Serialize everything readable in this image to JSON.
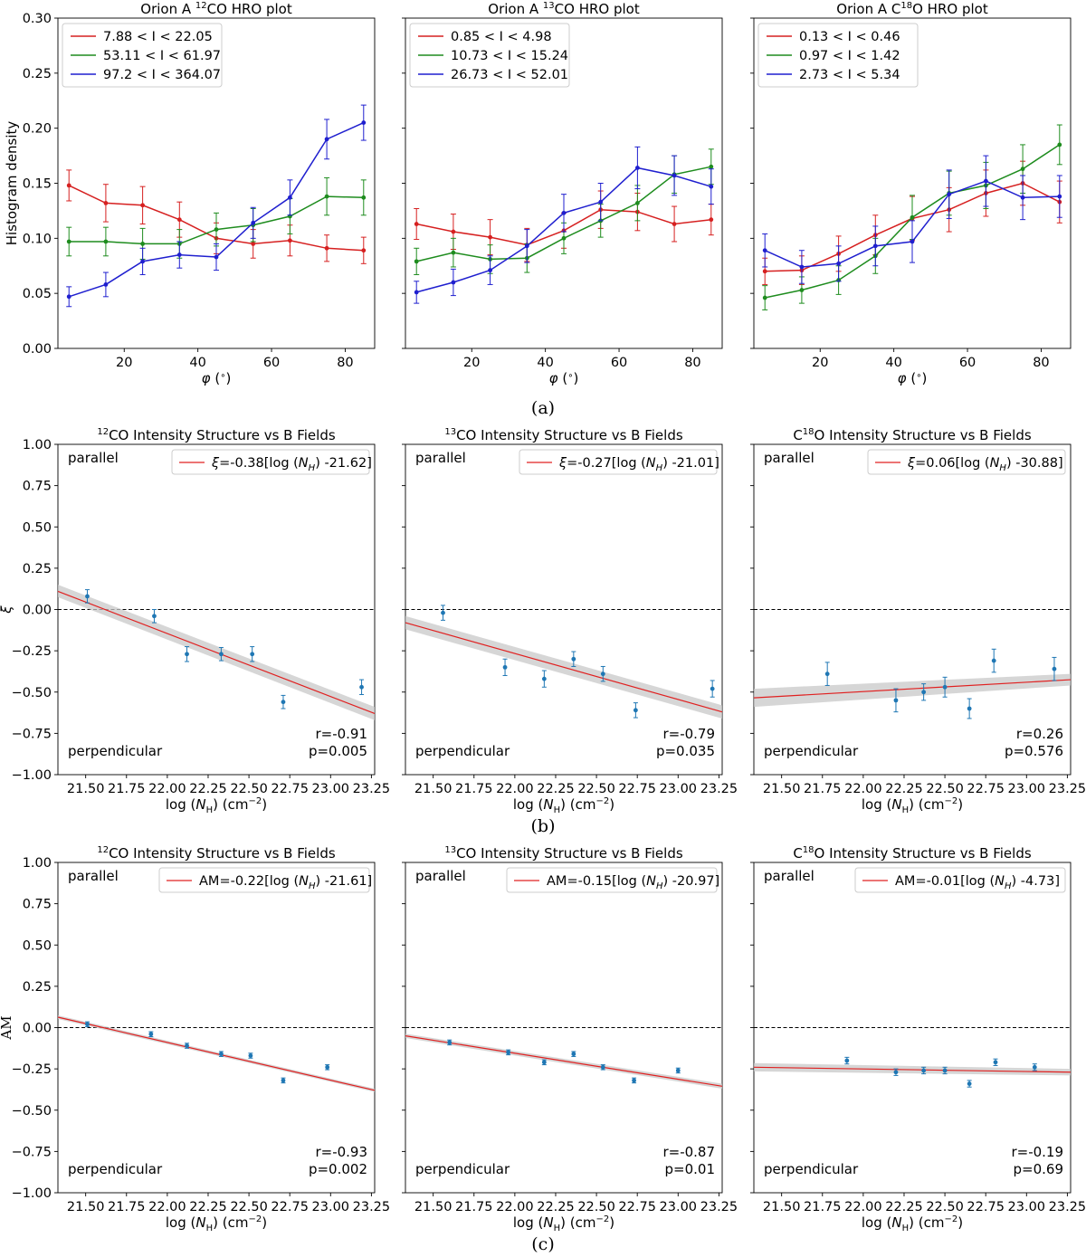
{
  "colors": {
    "red": "#d62020",
    "green": "#1e8c1e",
    "blue": "#1f1fcf",
    "teal": "#1f77b4",
    "fit": "#e02020",
    "band": "#c8c8c8"
  },
  "captions": [
    "(a)",
    "(b)",
    "(c)"
  ],
  "chart_data": [
    {
      "type": "line",
      "id": "a1",
      "row": 0,
      "col": 0,
      "title_prefix": "Orion A ",
      "title_sup": "12",
      "title_suffix": "CO HRO plot",
      "xlabel": "φ (°)",
      "ylabel": "Histogram density",
      "xlim": [
        2,
        88
      ],
      "ylim": [
        0,
        0.3
      ],
      "xticks": [
        20,
        40,
        60,
        80
      ],
      "yticks": [
        0.0,
        0.05,
        0.1,
        0.15,
        0.2,
        0.25,
        0.3
      ],
      "ytick_labels": [
        "0.00",
        "0.05",
        "0.10",
        "0.15",
        "0.20",
        "0.25",
        "0.30"
      ],
      "x": [
        5,
        15,
        25,
        35,
        45,
        55,
        65,
        75,
        85
      ],
      "series": [
        {
          "name": "7.88 < I < 22.05",
          "color": "red",
          "values": [
            0.148,
            0.132,
            0.13,
            0.117,
            0.1,
            0.095,
            0.098,
            0.091,
            0.089
          ],
          "err": [
            0.014,
            0.017,
            0.017,
            0.016,
            0.014,
            0.013,
            0.014,
            0.012,
            0.012
          ]
        },
        {
          "name": "53.11 < I < 61.97",
          "color": "green",
          "values": [
            0.097,
            0.097,
            0.095,
            0.095,
            0.108,
            0.112,
            0.12,
            0.138,
            0.137
          ],
          "err": [
            0.013,
            0.013,
            0.014,
            0.013,
            0.015,
            0.015,
            0.016,
            0.017,
            0.016
          ]
        },
        {
          "name": "97.2 < I < 364.07",
          "color": "blue",
          "values": [
            0.047,
            0.058,
            0.079,
            0.085,
            0.083,
            0.114,
            0.137,
            0.19,
            0.205
          ],
          "err": [
            0.009,
            0.011,
            0.012,
            0.012,
            0.012,
            0.014,
            0.016,
            0.018,
            0.016
          ]
        }
      ]
    },
    {
      "type": "line",
      "id": "a2",
      "row": 0,
      "col": 1,
      "title_prefix": "Orion A ",
      "title_sup": "13",
      "title_suffix": "CO HRO plot",
      "xlabel": "φ (°)",
      "ylabel": "",
      "xlim": [
        2,
        88
      ],
      "ylim": [
        0,
        0.3
      ],
      "xticks": [
        20,
        40,
        60,
        80
      ],
      "yticks": [
        0.0,
        0.05,
        0.1,
        0.15,
        0.2,
        0.25,
        0.3
      ],
      "x": [
        5,
        15,
        25,
        35,
        45,
        55,
        65,
        75,
        85
      ],
      "series": [
        {
          "name": "0.85 < I < 4.98",
          "color": "red",
          "values": [
            0.113,
            0.106,
            0.101,
            0.094,
            0.107,
            0.126,
            0.124,
            0.113,
            0.117
          ],
          "err": [
            0.014,
            0.016,
            0.016,
            0.015,
            0.016,
            0.017,
            0.017,
            0.016,
            0.014
          ]
        },
        {
          "name": "10.73 < I < 15.24",
          "color": "green",
          "values": [
            0.079,
            0.087,
            0.081,
            0.082,
            0.1,
            0.116,
            0.132,
            0.158,
            0.165
          ],
          "err": [
            0.012,
            0.013,
            0.013,
            0.013,
            0.014,
            0.015,
            0.016,
            0.017,
            0.016
          ]
        },
        {
          "name": "26.73 < I < 52.01",
          "color": "blue",
          "values": [
            0.051,
            0.06,
            0.071,
            0.093,
            0.123,
            0.133,
            0.164,
            0.157,
            0.147
          ],
          "err": [
            0.01,
            0.012,
            0.013,
            0.015,
            0.017,
            0.017,
            0.019,
            0.018,
            0.016
          ]
        }
      ]
    },
    {
      "type": "line",
      "id": "a3",
      "row": 0,
      "col": 2,
      "title_prefix": "Orion A C",
      "title_sup": "18",
      "title_suffix": "O HRO plot",
      "xlabel": "φ (°)",
      "ylabel": "",
      "xlim": [
        2,
        88
      ],
      "ylim": [
        0,
        0.3
      ],
      "xticks": [
        20,
        40,
        60,
        80
      ],
      "yticks": [
        0.0,
        0.05,
        0.1,
        0.15,
        0.2,
        0.25,
        0.3
      ],
      "x": [
        5,
        15,
        25,
        35,
        45,
        55,
        65,
        75,
        85
      ],
      "series": [
        {
          "name": "0.13 < I < 0.46",
          "color": "red",
          "values": [
            0.07,
            0.071,
            0.086,
            0.103,
            0.118,
            0.126,
            0.141,
            0.15,
            0.133
          ],
          "err": [
            0.012,
            0.013,
            0.016,
            0.018,
            0.02,
            0.02,
            0.021,
            0.02,
            0.019
          ]
        },
        {
          "name": "0.97 < I < 1.42",
          "color": "green",
          "values": [
            0.046,
            0.053,
            0.062,
            0.084,
            0.119,
            0.141,
            0.148,
            0.163,
            0.185
          ],
          "err": [
            0.011,
            0.012,
            0.013,
            0.016,
            0.02,
            0.02,
            0.021,
            0.022,
            0.018
          ]
        },
        {
          "name": "2.73 < I < 5.34",
          "color": "blue",
          "values": [
            0.089,
            0.074,
            0.077,
            0.093,
            0.097,
            0.14,
            0.152,
            0.137,
            0.138
          ],
          "err": [
            0.015,
            0.015,
            0.016,
            0.018,
            0.019,
            0.022,
            0.023,
            0.02,
            0.019
          ]
        }
      ]
    },
    {
      "type": "scatter",
      "id": "b1",
      "row": 1,
      "col": 0,
      "title_prefix": "",
      "title_sup": "12",
      "title_suffix": "CO Intensity Structure vs B Fields",
      "xlabel": "log (N_H) (cm⁻²)",
      "ylabel": "ξ",
      "xlim": [
        21.33,
        23.27
      ],
      "ylim": [
        -1,
        1
      ],
      "xticks": [
        21.5,
        21.75,
        22.0,
        22.25,
        22.5,
        22.75,
        23.0,
        23.25
      ],
      "xtick_labels": [
        "21.50",
        "21.75",
        "22.00",
        "22.25",
        "22.50",
        "22.75",
        "23.00",
        "23.25"
      ],
      "yticks": [
        -1,
        -0.75,
        -0.5,
        -0.25,
        0,
        0.25,
        0.5,
        0.75,
        1
      ],
      "ytick_labels": [
        "−1.00",
        "−0.75",
        "−0.50",
        "−0.25",
        "0.00",
        "0.25",
        "0.50",
        "0.75",
        "1.00"
      ],
      "legend": {
        "var": "ξ",
        "rest": "=-0.38[log (",
        "sub": "H",
        "tail": ") -21.62]"
      },
      "annotations": {
        "top": "parallel",
        "bottom": "perpendicular",
        "r": "r=-0.91",
        "p": "p=0.005"
      },
      "points": {
        "x": [
          21.51,
          21.92,
          22.12,
          22.33,
          22.52,
          22.71,
          23.19
        ],
        "y": [
          0.08,
          -0.04,
          -0.27,
          -0.27,
          -0.27,
          -0.56,
          -0.47
        ],
        "err": [
          0.04,
          0.04,
          0.045,
          0.04,
          0.045,
          0.04,
          0.045
        ]
      },
      "fit": {
        "x": [
          21.33,
          23.27
        ],
        "y": [
          0.11,
          -0.63
        ],
        "band_lo": [
          0.075,
          -0.67
        ],
        "band_hi": [
          0.15,
          -0.59
        ]
      }
    },
    {
      "type": "scatter",
      "id": "b2",
      "row": 1,
      "col": 1,
      "title_prefix": "",
      "title_sup": "13",
      "title_suffix": "CO Intensity Structure vs B Fields",
      "xlabel": "log (N_H) (cm⁻²)",
      "ylabel": "",
      "xlim": [
        21.33,
        23.27
      ],
      "ylim": [
        -1,
        1
      ],
      "xticks": [
        21.5,
        21.75,
        22.0,
        22.25,
        22.5,
        22.75,
        23.0,
        23.25
      ],
      "xtick_labels": [
        "21.50",
        "21.75",
        "22.00",
        "22.25",
        "22.50",
        "22.75",
        "23.00",
        "23.25"
      ],
      "yticks": [
        -1,
        -0.75,
        -0.5,
        -0.25,
        0,
        0.25,
        0.5,
        0.75,
        1
      ],
      "legend": {
        "var": "ξ",
        "rest": "=-0.27[log (",
        "sub": "H",
        "tail": ") -21.01]"
      },
      "annotations": {
        "top": "parallel",
        "bottom": "perpendicular",
        "r": "r=-0.79",
        "p": "p=0.035"
      },
      "points": {
        "x": [
          21.56,
          21.94,
          22.18,
          22.36,
          22.54,
          22.74,
          23.21
        ],
        "y": [
          -0.02,
          -0.35,
          -0.42,
          -0.3,
          -0.39,
          -0.61,
          -0.48
        ],
        "err": [
          0.045,
          0.05,
          0.05,
          0.045,
          0.045,
          0.045,
          0.05
        ]
      },
      "fit": {
        "x": [
          21.33,
          23.27
        ],
        "y": [
          -0.08,
          -0.62
        ],
        "band_lo": [
          -0.12,
          -0.66
        ],
        "band_hi": [
          -0.04,
          -0.58
        ]
      }
    },
    {
      "type": "scatter",
      "id": "b3",
      "row": 1,
      "col": 2,
      "title_prefix": "C",
      "title_sup": "18",
      "title_suffix": "O Intensity Structure vs B Fields",
      "xlabel": "log (N_H) (cm⁻²)",
      "ylabel": "",
      "xlim": [
        21.33,
        23.27
      ],
      "ylim": [
        -1,
        1
      ],
      "xticks": [
        21.5,
        21.75,
        22.0,
        22.25,
        22.5,
        22.75,
        23.0,
        23.25
      ],
      "xtick_labels": [
        "21.50",
        "21.75",
        "22.00",
        "22.25",
        "22.50",
        "22.75",
        "23.00",
        "23.25"
      ],
      "yticks": [
        -1,
        -0.75,
        -0.5,
        -0.25,
        0,
        0.25,
        0.5,
        0.75,
        1
      ],
      "legend": {
        "var": "ξ",
        "rest": "=0.06[log (",
        "sub": "H",
        "tail": ") -30.88]"
      },
      "annotations": {
        "top": "parallel",
        "bottom": "perpendicular",
        "r": "r=0.26",
        "p": "p=0.576"
      },
      "points": {
        "x": [
          21.78,
          22.2,
          22.37,
          22.5,
          22.65,
          22.8,
          23.17
        ],
        "y": [
          -0.39,
          -0.55,
          -0.5,
          -0.47,
          -0.6,
          -0.31,
          -0.36
        ],
        "err": [
          0.07,
          0.07,
          0.05,
          0.06,
          0.06,
          0.07,
          0.07
        ]
      },
      "fit": {
        "x": [
          21.33,
          23.27
        ],
        "y": [
          -0.535,
          -0.425
        ],
        "band_lo": [
          -0.59,
          -0.46
        ],
        "band_hi": [
          -0.48,
          -0.39
        ]
      }
    },
    {
      "type": "scatter",
      "id": "c1",
      "row": 2,
      "col": 0,
      "title_prefix": "",
      "title_sup": "12",
      "title_suffix": "CO Intensity Structure vs B Fields",
      "xlabel": "log (N_H) (cm⁻²)",
      "ylabel": "AM",
      "xlim": [
        21.33,
        23.27
      ],
      "ylim": [
        -1,
        1
      ],
      "xticks": [
        21.5,
        21.75,
        22.0,
        22.25,
        22.5,
        22.75,
        23.0,
        23.25
      ],
      "xtick_labels": [
        "21.50",
        "21.75",
        "22.00",
        "22.25",
        "22.50",
        "22.75",
        "23.00",
        "23.25"
      ],
      "yticks": [
        -1,
        -0.75,
        -0.5,
        -0.25,
        0,
        0.25,
        0.5,
        0.75,
        1
      ],
      "ytick_labels": [
        "−1.00",
        "−0.75",
        "−0.50",
        "−0.25",
        "0.00",
        "0.25",
        "0.50",
        "0.75",
        "1.00"
      ],
      "legend": {
        "var": "AM",
        "rest": "=-0.22[log (",
        "sub": "H",
        "tail": ") -21.61]"
      },
      "annotations": {
        "top": "parallel",
        "bottom": "perpendicular",
        "r": "r=-0.93",
        "p": "p=0.002"
      },
      "points": {
        "x": [
          21.51,
          21.9,
          22.12,
          22.33,
          22.51,
          22.71,
          22.98
        ],
        "y": [
          0.02,
          -0.04,
          -0.11,
          -0.16,
          -0.17,
          -0.32,
          -0.24
        ],
        "err": [
          0.015,
          0.015,
          0.015,
          0.015,
          0.015,
          0.015,
          0.015
        ]
      },
      "fit": {
        "x": [
          21.33,
          23.27
        ],
        "y": [
          0.063,
          -0.38
        ],
        "band_lo": [
          0.052,
          -0.39
        ],
        "band_hi": [
          0.074,
          -0.37
        ]
      }
    },
    {
      "type": "scatter",
      "id": "c2",
      "row": 2,
      "col": 1,
      "title_prefix": "",
      "title_sup": "13",
      "title_suffix": "CO Intensity Structure vs B Fields",
      "xlabel": "log (N_H) (cm⁻²)",
      "ylabel": "",
      "xlim": [
        21.33,
        23.27
      ],
      "ylim": [
        -1,
        1
      ],
      "xticks": [
        21.5,
        21.75,
        22.0,
        22.25,
        22.5,
        22.75,
        23.0,
        23.25
      ],
      "xtick_labels": [
        "21.50",
        "21.75",
        "22.00",
        "22.25",
        "22.50",
        "22.75",
        "23.00",
        "23.25"
      ],
      "yticks": [
        -1,
        -0.75,
        -0.5,
        -0.25,
        0,
        0.25,
        0.5,
        0.75,
        1
      ],
      "legend": {
        "var": "AM",
        "rest": "=-0.15[log (",
        "sub": "H",
        "tail": ") -20.97]"
      },
      "annotations": {
        "top": "parallel",
        "bottom": "perpendicular",
        "r": "r=-0.87",
        "p": "p=0.01"
      },
      "points": {
        "x": [
          21.6,
          21.96,
          22.18,
          22.36,
          22.54,
          22.73,
          23.0
        ],
        "y": [
          -0.09,
          -0.15,
          -0.21,
          -0.16,
          -0.24,
          -0.32,
          -0.26
        ],
        "err": [
          0.015,
          0.015,
          0.015,
          0.015,
          0.015,
          0.015,
          0.015
        ]
      },
      "fit": {
        "x": [
          21.33,
          23.27
        ],
        "y": [
          -0.05,
          -0.355
        ],
        "band_lo": [
          -0.063,
          -0.37
        ],
        "band_hi": [
          -0.037,
          -0.34
        ]
      }
    },
    {
      "type": "scatter",
      "id": "c3",
      "row": 2,
      "col": 2,
      "title_prefix": "C",
      "title_sup": "18",
      "title_suffix": "O Intensity Structure vs B Fields",
      "xlabel": "log (N_H) (cm⁻²)",
      "ylabel": "",
      "xlim": [
        21.33,
        23.27
      ],
      "ylim": [
        -1,
        1
      ],
      "xticks": [
        21.5,
        21.75,
        22.0,
        22.25,
        22.5,
        22.75,
        23.0,
        23.25
      ],
      "xtick_labels": [
        "21.50",
        "21.75",
        "22.00",
        "22.25",
        "22.50",
        "22.75",
        "23.00",
        "23.25"
      ],
      "yticks": [
        -1,
        -0.75,
        -0.5,
        -0.25,
        0,
        0.25,
        0.5,
        0.75,
        1
      ],
      "legend": {
        "var": "AM",
        "rest": "=-0.01[log (",
        "sub": "H",
        "tail": ") -4.73]"
      },
      "annotations": {
        "top": "parallel",
        "bottom": "perpendicular",
        "r": "r=-0.19",
        "p": "p=0.69"
      },
      "points": {
        "x": [
          21.9,
          22.2,
          22.37,
          22.5,
          22.65,
          22.81,
          23.05
        ],
        "y": [
          -0.2,
          -0.27,
          -0.26,
          -0.26,
          -0.34,
          -0.21,
          -0.24
        ],
        "err": [
          0.02,
          0.02,
          0.02,
          0.02,
          0.02,
          0.02,
          0.02
        ]
      },
      "fit": {
        "x": [
          21.33,
          23.27
        ],
        "y": [
          -0.24,
          -0.27
        ],
        "band_lo": [
          -0.265,
          -0.29
        ],
        "band_hi": [
          -0.215,
          -0.25
        ]
      }
    }
  ]
}
